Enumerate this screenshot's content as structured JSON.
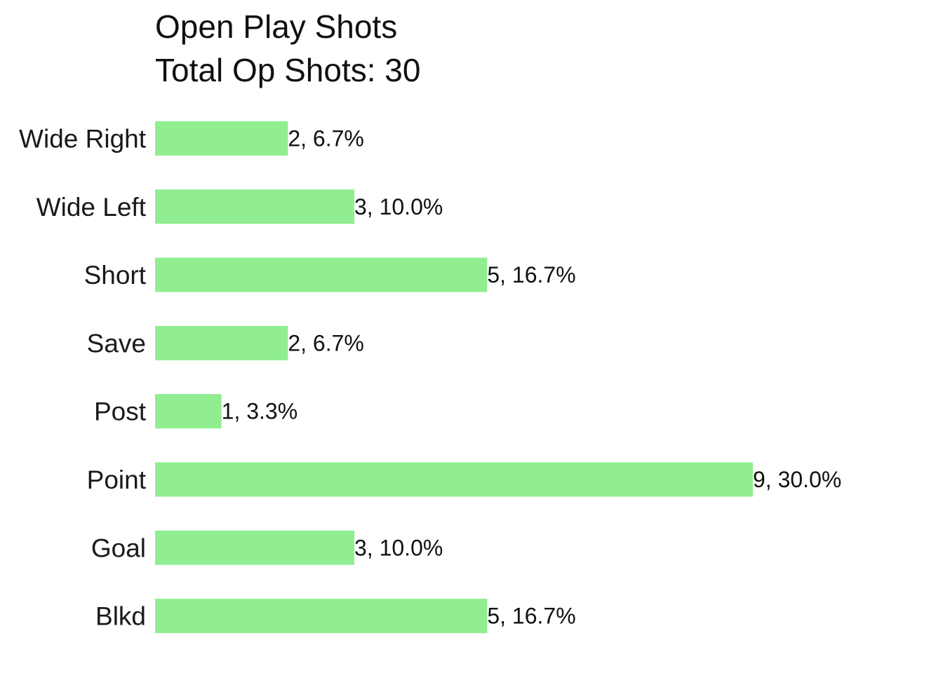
{
  "chart_data": {
    "type": "bar",
    "orientation": "horizontal",
    "title": "Open Play Shots",
    "subtitle": "Total Op Shots: 30",
    "xlabel": "",
    "ylabel": "",
    "grid": false,
    "legend": "none",
    "bar_color": "#90ee90",
    "categories": [
      "Wide Right",
      "Wide Left",
      "Short",
      "Save",
      "Post",
      "Point",
      "Goal",
      "Blkd"
    ],
    "values": [
      2,
      3,
      5,
      2,
      1,
      9,
      3,
      5
    ],
    "data_labels": [
      "2, 6.7%",
      "3, 10.0%",
      "5, 16.7%",
      "2, 6.7%",
      "1, 3.3%",
      "9, 30.0%",
      "3, 10.0%",
      "5, 16.7%"
    ],
    "xlim": [
      0,
      9
    ]
  }
}
